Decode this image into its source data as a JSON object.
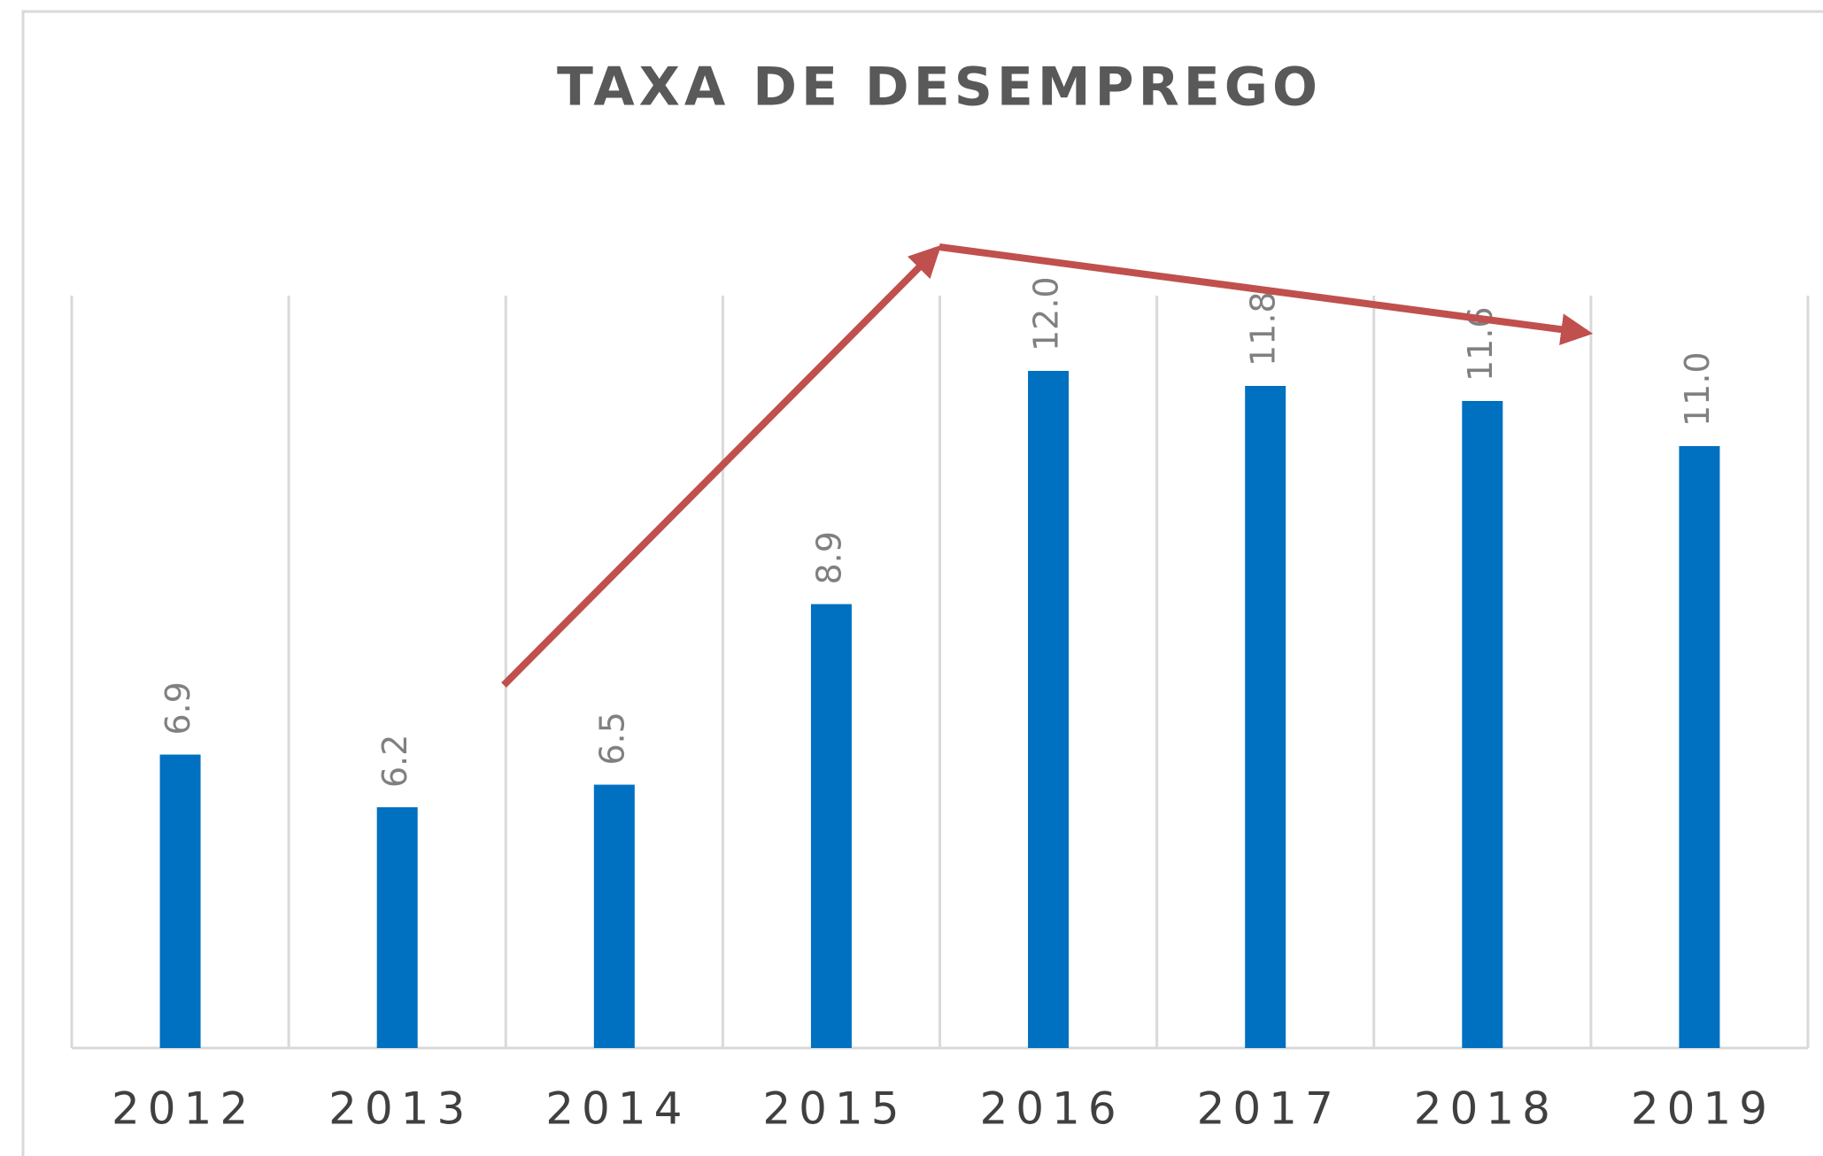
{
  "chart_data": {
    "type": "bar",
    "title": "TAXA DE DESEMPREGO",
    "categories": [
      "2012",
      "2013",
      "2014",
      "2015",
      "2016",
      "2017",
      "2018",
      "2019"
    ],
    "values": [
      6.9,
      6.2,
      6.5,
      8.9,
      12.0,
      11.8,
      11.6,
      11.0
    ],
    "value_labels": [
      "6.9",
      "6.2",
      "6.5",
      "8.9",
      "12.0",
      "11.8",
      "11.6",
      "11.0"
    ],
    "color": "#0070c0",
    "ylim": [
      3,
      13
    ]
  }
}
